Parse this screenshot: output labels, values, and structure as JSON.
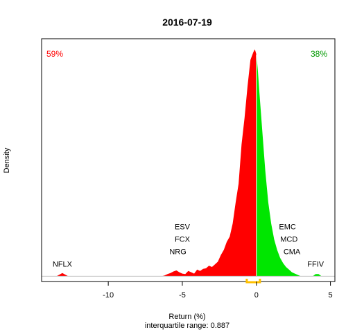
{
  "chart_data": {
    "type": "area",
    "title": "2016-07-19",
    "xlabel": "Return (%)",
    "ylabel": "Density",
    "subtitle": "interquartile range: 0.887",
    "xlim": [
      -14.5,
      5.3
    ],
    "ylim": [
      -0.02,
      0.9
    ],
    "xticks": [
      -10,
      -5,
      0,
      5
    ],
    "colors": {
      "negative": "#ff0000",
      "positive": "#00e600",
      "iqr": "#ffc000",
      "axis": "#000000",
      "baseline": "#bfbfbf"
    },
    "pct_negative": "59%",
    "pct_positive": "38%",
    "iqr_range": [
      -0.65,
      0.24
    ],
    "labels_negative": [
      {
        "text": "NFLX",
        "x": -13.1,
        "row": 0
      },
      {
        "text": "NRG",
        "x": -5.3,
        "row": 1
      },
      {
        "text": "FCX",
        "x": -5.0,
        "row": 2
      },
      {
        "text": "ESV",
        "x": -5.0,
        "row": 3
      }
    ],
    "labels_positive": [
      {
        "text": "FFIV",
        "x": 4.0,
        "row": 0
      },
      {
        "text": "CMA",
        "x": 2.4,
        "row": 1
      },
      {
        "text": "MCD",
        "x": 2.2,
        "row": 2
      },
      {
        "text": "EMC",
        "x": 2.1,
        "row": 3
      }
    ],
    "density": {
      "x": [
        -13.5,
        -13.3,
        -13.1,
        -12.9,
        -12.7,
        -12.5,
        -6.4,
        -6.2,
        -6.0,
        -5.8,
        -5.6,
        -5.4,
        -5.2,
        -5.0,
        -4.8,
        -4.6,
        -4.4,
        -4.2,
        -4.0,
        -3.8,
        -3.6,
        -3.4,
        -3.2,
        -3.0,
        -2.8,
        -2.6,
        -2.4,
        -2.2,
        -2.0,
        -1.8,
        -1.6,
        -1.4,
        -1.2,
        -1.0,
        -0.8,
        -0.6,
        -0.4,
        -0.2,
        -0.1,
        0.0,
        0.1,
        0.2,
        0.4,
        0.6,
        0.8,
        1.0,
        1.2,
        1.4,
        1.6,
        1.8,
        2.0,
        2.2,
        2.4,
        2.6,
        2.8,
        3.0,
        3.8,
        4.0,
        4.2,
        4.4
      ],
      "y": [
        0.0,
        0.006,
        0.012,
        0.006,
        0.0,
        0.0,
        0.0,
        0.003,
        0.008,
        0.012,
        0.018,
        0.022,
        0.015,
        0.01,
        0.008,
        0.02,
        0.015,
        0.01,
        0.025,
        0.02,
        0.028,
        0.03,
        0.04,
        0.035,
        0.045,
        0.055,
        0.08,
        0.1,
        0.13,
        0.15,
        0.2,
        0.28,
        0.35,
        0.5,
        0.6,
        0.72,
        0.82,
        0.85,
        0.86,
        0.84,
        0.78,
        0.7,
        0.55,
        0.4,
        0.28,
        0.2,
        0.14,
        0.1,
        0.07,
        0.05,
        0.035,
        0.025,
        0.015,
        0.01,
        0.005,
        0.0,
        0.0,
        0.008,
        0.008,
        0.0
      ]
    }
  }
}
